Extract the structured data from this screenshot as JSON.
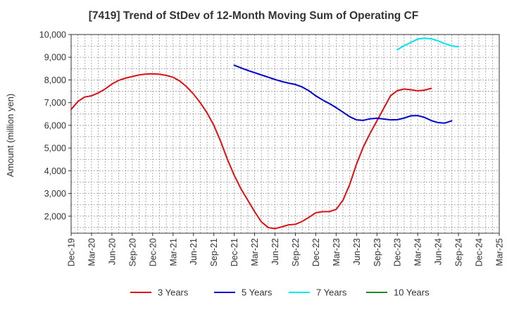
{
  "chart_data": {
    "type": "line",
    "title": "[7419]  Trend of StDev of 12-Month Moving Sum of Operating CF",
    "ylabel": "Amount (million yen)",
    "xlabel": "",
    "ylim": [
      1250,
      10000
    ],
    "yticks": [
      2000,
      3000,
      4000,
      5000,
      6000,
      7000,
      8000,
      9000,
      10000
    ],
    "ytick_labels": [
      "2,000",
      "3,000",
      "4,000",
      "5,000",
      "6,000",
      "7,000",
      "8,000",
      "9,000",
      "10,000"
    ],
    "x_start": "Dec-19",
    "x_months": 63,
    "xtick_labels": [
      "Dec-19",
      "Mar-20",
      "Jun-20",
      "Sep-20",
      "Dec-20",
      "Mar-21",
      "Jun-21",
      "Sep-21",
      "Dec-21",
      "Mar-22",
      "Jun-22",
      "Sep-22",
      "Dec-22",
      "Mar-23",
      "Jun-23",
      "Sep-23",
      "Dec-23",
      "Mar-24",
      "Jun-24",
      "Sep-24",
      "Dec-24",
      "Mar-25"
    ],
    "grid": true,
    "legend_position": "bottom",
    "series": [
      {
        "name": "3 Years",
        "color": "#dd1111",
        "start_index": 0,
        "values": [
          6700,
          7050,
          7250,
          7300,
          7430,
          7600,
          7820,
          7980,
          8080,
          8150,
          8220,
          8260,
          8270,
          8250,
          8200,
          8120,
          7950,
          7700,
          7380,
          7000,
          6550,
          6000,
          5300,
          4500,
          3800,
          3200,
          2700,
          2200,
          1750,
          1500,
          1450,
          1530,
          1620,
          1640,
          1770,
          1950,
          2150,
          2200,
          2200,
          2300,
          2700,
          3400,
          4300,
          5050,
          5650,
          6200,
          6750,
          7300,
          7530,
          7600,
          7570,
          7520,
          7550,
          7630
        ]
      },
      {
        "name": "5 Years",
        "color": "#0000cc",
        "start_index": 24,
        "values": [
          8650,
          8530,
          8420,
          8320,
          8220,
          8120,
          8020,
          7930,
          7860,
          7800,
          7690,
          7520,
          7300,
          7120,
          6960,
          6780,
          6580,
          6380,
          6240,
          6220,
          6290,
          6310,
          6280,
          6240,
          6250,
          6320,
          6420,
          6430,
          6350,
          6210,
          6120,
          6100,
          6200
        ]
      },
      {
        "name": "7 Years",
        "color": "#00e5ee",
        "start_index": 48,
        "values": [
          9330,
          9510,
          9650,
          9800,
          9840,
          9810,
          9720,
          9600,
          9500,
          9460
        ]
      },
      {
        "name": "10 Years",
        "color": "#228822",
        "start_index": 0,
        "values": []
      }
    ]
  }
}
